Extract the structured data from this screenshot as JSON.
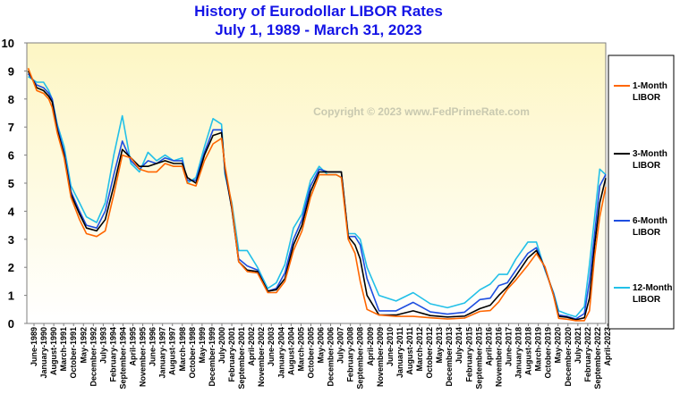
{
  "chart_data": {
    "type": "line",
    "title_line1": "History of Eurodollar LIBOR Rates",
    "title_line2": "July 1, 1989  -  March 31, 2023",
    "copyright": "Copyright © 2023 www.FedPrimeRate.com",
    "ylim": [
      0,
      10
    ],
    "yticks": [
      "0",
      "1",
      "2",
      "3",
      "4",
      "5",
      "6",
      "7",
      "8",
      "9",
      "10"
    ],
    "xlim": [
      1989.42,
      2023.25
    ],
    "x_labels": [
      "June-1989",
      "January-1990",
      "August-1990",
      "March-1991",
      "October-1991",
      "May-1992",
      "December-1992",
      "July-1993",
      "February-1994",
      "September-1994",
      "April-1995",
      "November-1995",
      "June-1996",
      "January-1997",
      "August-1997",
      "March-1998",
      "October-1998",
      "May-1999",
      "December-1999",
      "July-2000",
      "February-2001",
      "September-2001",
      "April-2002",
      "November-2002",
      "June-2003",
      "January-2004",
      "August-2004",
      "March-2005",
      "October-2005",
      "May-2006",
      "December-2006",
      "July-2007",
      "February-2008",
      "September-2008",
      "April-2009",
      "November-2009",
      "June-2010",
      "January-2011",
      "August-2011",
      "March-2012",
      "October-2012",
      "May-2013",
      "December-2013",
      "July-2014",
      "February-2015",
      "September-2015",
      "April-2016",
      "November-2016",
      "June-2017",
      "January-2018",
      "August-2018",
      "March-2019",
      "October-2019",
      "May-2020",
      "December-2020",
      "July-2021",
      "February-2022",
      "September-2022",
      "April-2023"
    ],
    "series": [
      {
        "name": "1-Month LIBOR",
        "label_line1": "1-Month",
        "label_line2": "LIBOR",
        "color": "#ff6600",
        "x": [
          1989.5,
          1990.0,
          1990.4,
          1990.7,
          1990.9,
          1991.2,
          1991.6,
          1992.0,
          1992.5,
          1992.9,
          1993.5,
          1994.0,
          1994.5,
          1995.0,
          1995.5,
          1996.0,
          1996.5,
          1997.0,
          1997.5,
          1998.0,
          1998.5,
          1998.8,
          1999.3,
          1999.8,
          2000.3,
          2000.8,
          2001.0,
          2001.4,
          2001.8,
          2002.3,
          2002.9,
          2003.5,
          2004.0,
          2004.5,
          2005.0,
          2005.5,
          2006.0,
          2006.5,
          2007.0,
          2007.5,
          2007.8,
          2008.2,
          2008.6,
          2008.9,
          2009.3,
          2010.0,
          2011.0,
          2012.0,
          2013.0,
          2014.0,
          2015.0,
          2015.9,
          2016.5,
          2017.0,
          2017.5,
          2018.0,
          2018.7,
          2019.2,
          2019.7,
          2020.2,
          2020.5,
          2021.0,
          2021.5,
          2022.0,
          2022.3,
          2022.6,
          2022.9,
          2023.25
        ],
        "values": [
          9.1,
          8.3,
          8.2,
          8.0,
          7.7,
          6.8,
          5.9,
          4.5,
          3.7,
          3.2,
          3.1,
          3.3,
          4.6,
          6.0,
          5.9,
          5.5,
          5.4,
          5.4,
          5.7,
          5.6,
          5.6,
          5.0,
          4.9,
          5.8,
          6.4,
          6.6,
          5.6,
          4.2,
          2.2,
          1.85,
          1.8,
          1.1,
          1.1,
          1.5,
          2.6,
          3.3,
          4.5,
          5.3,
          5.3,
          5.3,
          5.2,
          3.0,
          2.5,
          1.5,
          0.5,
          0.3,
          0.25,
          0.25,
          0.2,
          0.16,
          0.19,
          0.43,
          0.46,
          0.77,
          1.22,
          1.55,
          2.08,
          2.49,
          2.02,
          0.99,
          0.18,
          0.15,
          0.1,
          0.1,
          0.45,
          2.4,
          3.8,
          4.86
        ]
      },
      {
        "name": "3-Month LIBOR",
        "label_line1": "3-Month",
        "label_line2": "LIBOR",
        "color": "#000000",
        "x": [
          1989.5,
          1990.0,
          1990.4,
          1990.7,
          1990.9,
          1991.2,
          1991.6,
          1992.0,
          1992.5,
          1992.9,
          1993.5,
          1994.0,
          1994.5,
          1995.0,
          1995.5,
          1996.0,
          1996.5,
          1997.0,
          1997.5,
          1998.0,
          1998.5,
          1998.8,
          1999.3,
          1999.8,
          2000.3,
          2000.8,
          2001.0,
          2001.4,
          2001.8,
          2002.3,
          2002.9,
          2003.5,
          2004.0,
          2004.5,
          2005.0,
          2005.5,
          2006.0,
          2006.5,
          2007.0,
          2007.5,
          2007.8,
          2008.2,
          2008.6,
          2008.9,
          2009.3,
          2010.0,
          2011.0,
          2012.0,
          2013.0,
          2014.0,
          2015.0,
          2015.9,
          2016.5,
          2017.0,
          2017.5,
          2018.0,
          2018.7,
          2019.2,
          2019.7,
          2020.2,
          2020.5,
          2021.0,
          2021.5,
          2022.0,
          2022.3,
          2022.6,
          2022.9,
          2023.25
        ],
        "values": [
          9.0,
          8.4,
          8.3,
          8.1,
          7.9,
          6.9,
          6.0,
          4.6,
          3.9,
          3.4,
          3.3,
          3.7,
          4.9,
          6.2,
          5.9,
          5.6,
          5.6,
          5.7,
          5.8,
          5.7,
          5.7,
          5.2,
          5.0,
          6.0,
          6.7,
          6.8,
          5.5,
          4.1,
          2.2,
          1.9,
          1.85,
          1.15,
          1.2,
          1.6,
          2.8,
          3.5,
          4.7,
          5.4,
          5.4,
          5.4,
          5.4,
          3.1,
          2.8,
          2.3,
          1.0,
          0.3,
          0.3,
          0.45,
          0.28,
          0.23,
          0.26,
          0.53,
          0.65,
          1.0,
          1.3,
          1.7,
          2.33,
          2.6,
          2.0,
          1.0,
          0.25,
          0.22,
          0.13,
          0.2,
          0.9,
          2.8,
          4.3,
          5.18
        ]
      },
      {
        "name": "6-Month LIBOR",
        "label_line1": "6-Month",
        "label_line2": "LIBOR",
        "color": "#1e4ee0",
        "x": [
          1989.5,
          1990.0,
          1990.4,
          1990.7,
          1990.9,
          1991.2,
          1991.6,
          1992.0,
          1992.5,
          1992.9,
          1993.5,
          1994.0,
          1994.5,
          1995.0,
          1995.5,
          1996.0,
          1996.5,
          1997.0,
          1997.5,
          1998.0,
          1998.5,
          1998.8,
          1999.3,
          1999.8,
          2000.3,
          2000.8,
          2001.0,
          2001.4,
          2001.8,
          2002.3,
          2002.9,
          2003.5,
          2004.0,
          2004.5,
          2005.0,
          2005.5,
          2006.0,
          2006.5,
          2007.0,
          2007.5,
          2007.8,
          2008.2,
          2008.6,
          2008.9,
          2009.3,
          2010.0,
          2011.0,
          2012.0,
          2013.0,
          2014.0,
          2015.0,
          2015.9,
          2016.5,
          2017.0,
          2017.5,
          2018.0,
          2018.7,
          2019.2,
          2019.7,
          2020.2,
          2020.5,
          2021.0,
          2021.5,
          2022.0,
          2022.3,
          2022.6,
          2022.9,
          2023.25
        ],
        "values": [
          8.9,
          8.5,
          8.4,
          8.2,
          8.0,
          7.0,
          6.1,
          4.7,
          4.0,
          3.5,
          3.4,
          4.0,
          5.3,
          6.5,
          5.8,
          5.5,
          5.8,
          5.7,
          5.9,
          5.8,
          5.8,
          5.1,
          5.1,
          6.1,
          6.9,
          6.9,
          5.4,
          4.1,
          2.3,
          2.05,
          1.9,
          1.15,
          1.25,
          1.8,
          3.0,
          3.7,
          4.9,
          5.5,
          5.4,
          5.4,
          5.4,
          3.1,
          3.1,
          2.8,
          1.6,
          0.45,
          0.45,
          0.75,
          0.41,
          0.33,
          0.4,
          0.85,
          0.9,
          1.35,
          1.45,
          1.9,
          2.5,
          2.7,
          1.95,
          1.05,
          0.3,
          0.25,
          0.16,
          0.35,
          1.5,
          3.2,
          4.9,
          5.31
        ]
      },
      {
        "name": "12-Month LIBOR",
        "label_line1": "12-Month",
        "label_line2": "LIBOR",
        "color": "#22c0e8",
        "x": [
          1989.5,
          1990.0,
          1990.4,
          1990.7,
          1990.9,
          1991.2,
          1991.6,
          1992.0,
          1992.5,
          1992.9,
          1993.5,
          1994.0,
          1994.5,
          1995.0,
          1995.5,
          1996.0,
          1996.5,
          1997.0,
          1997.5,
          1998.0,
          1998.5,
          1998.8,
          1999.3,
          1999.8,
          2000.3,
          2000.8,
          2001.0,
          2001.4,
          2001.8,
          2002.3,
          2002.9,
          2003.5,
          2004.0,
          2004.5,
          2005.0,
          2005.5,
          2006.0,
          2006.5,
          2007.0,
          2007.5,
          2007.8,
          2008.2,
          2008.6,
          2008.9,
          2009.3,
          2010.0,
          2011.0,
          2012.0,
          2013.0,
          2014.0,
          2015.0,
          2015.9,
          2016.5,
          2017.0,
          2017.5,
          2018.0,
          2018.7,
          2019.2,
          2019.7,
          2020.2,
          2020.5,
          2021.0,
          2021.5,
          2022.0,
          2022.3,
          2022.6,
          2022.9,
          2023.25
        ],
        "values": [
          8.8,
          8.6,
          8.6,
          8.3,
          8.0,
          7.1,
          6.3,
          4.9,
          4.3,
          3.8,
          3.6,
          4.3,
          6.0,
          7.4,
          5.7,
          5.4,
          6.1,
          5.8,
          6.0,
          5.8,
          5.9,
          5.0,
          5.2,
          6.3,
          7.3,
          7.1,
          5.3,
          4.3,
          2.6,
          2.6,
          2.0,
          1.25,
          1.45,
          2.1,
          3.4,
          3.9,
          5.1,
          5.6,
          5.3,
          5.3,
          5.2,
          3.2,
          3.2,
          3.0,
          2.0,
          1.0,
          0.8,
          1.1,
          0.7,
          0.56,
          0.73,
          1.2,
          1.4,
          1.75,
          1.75,
          2.3,
          2.9,
          2.9,
          1.9,
          1.1,
          0.45,
          0.33,
          0.24,
          0.6,
          2.1,
          3.8,
          5.5,
          5.3
        ]
      }
    ]
  }
}
